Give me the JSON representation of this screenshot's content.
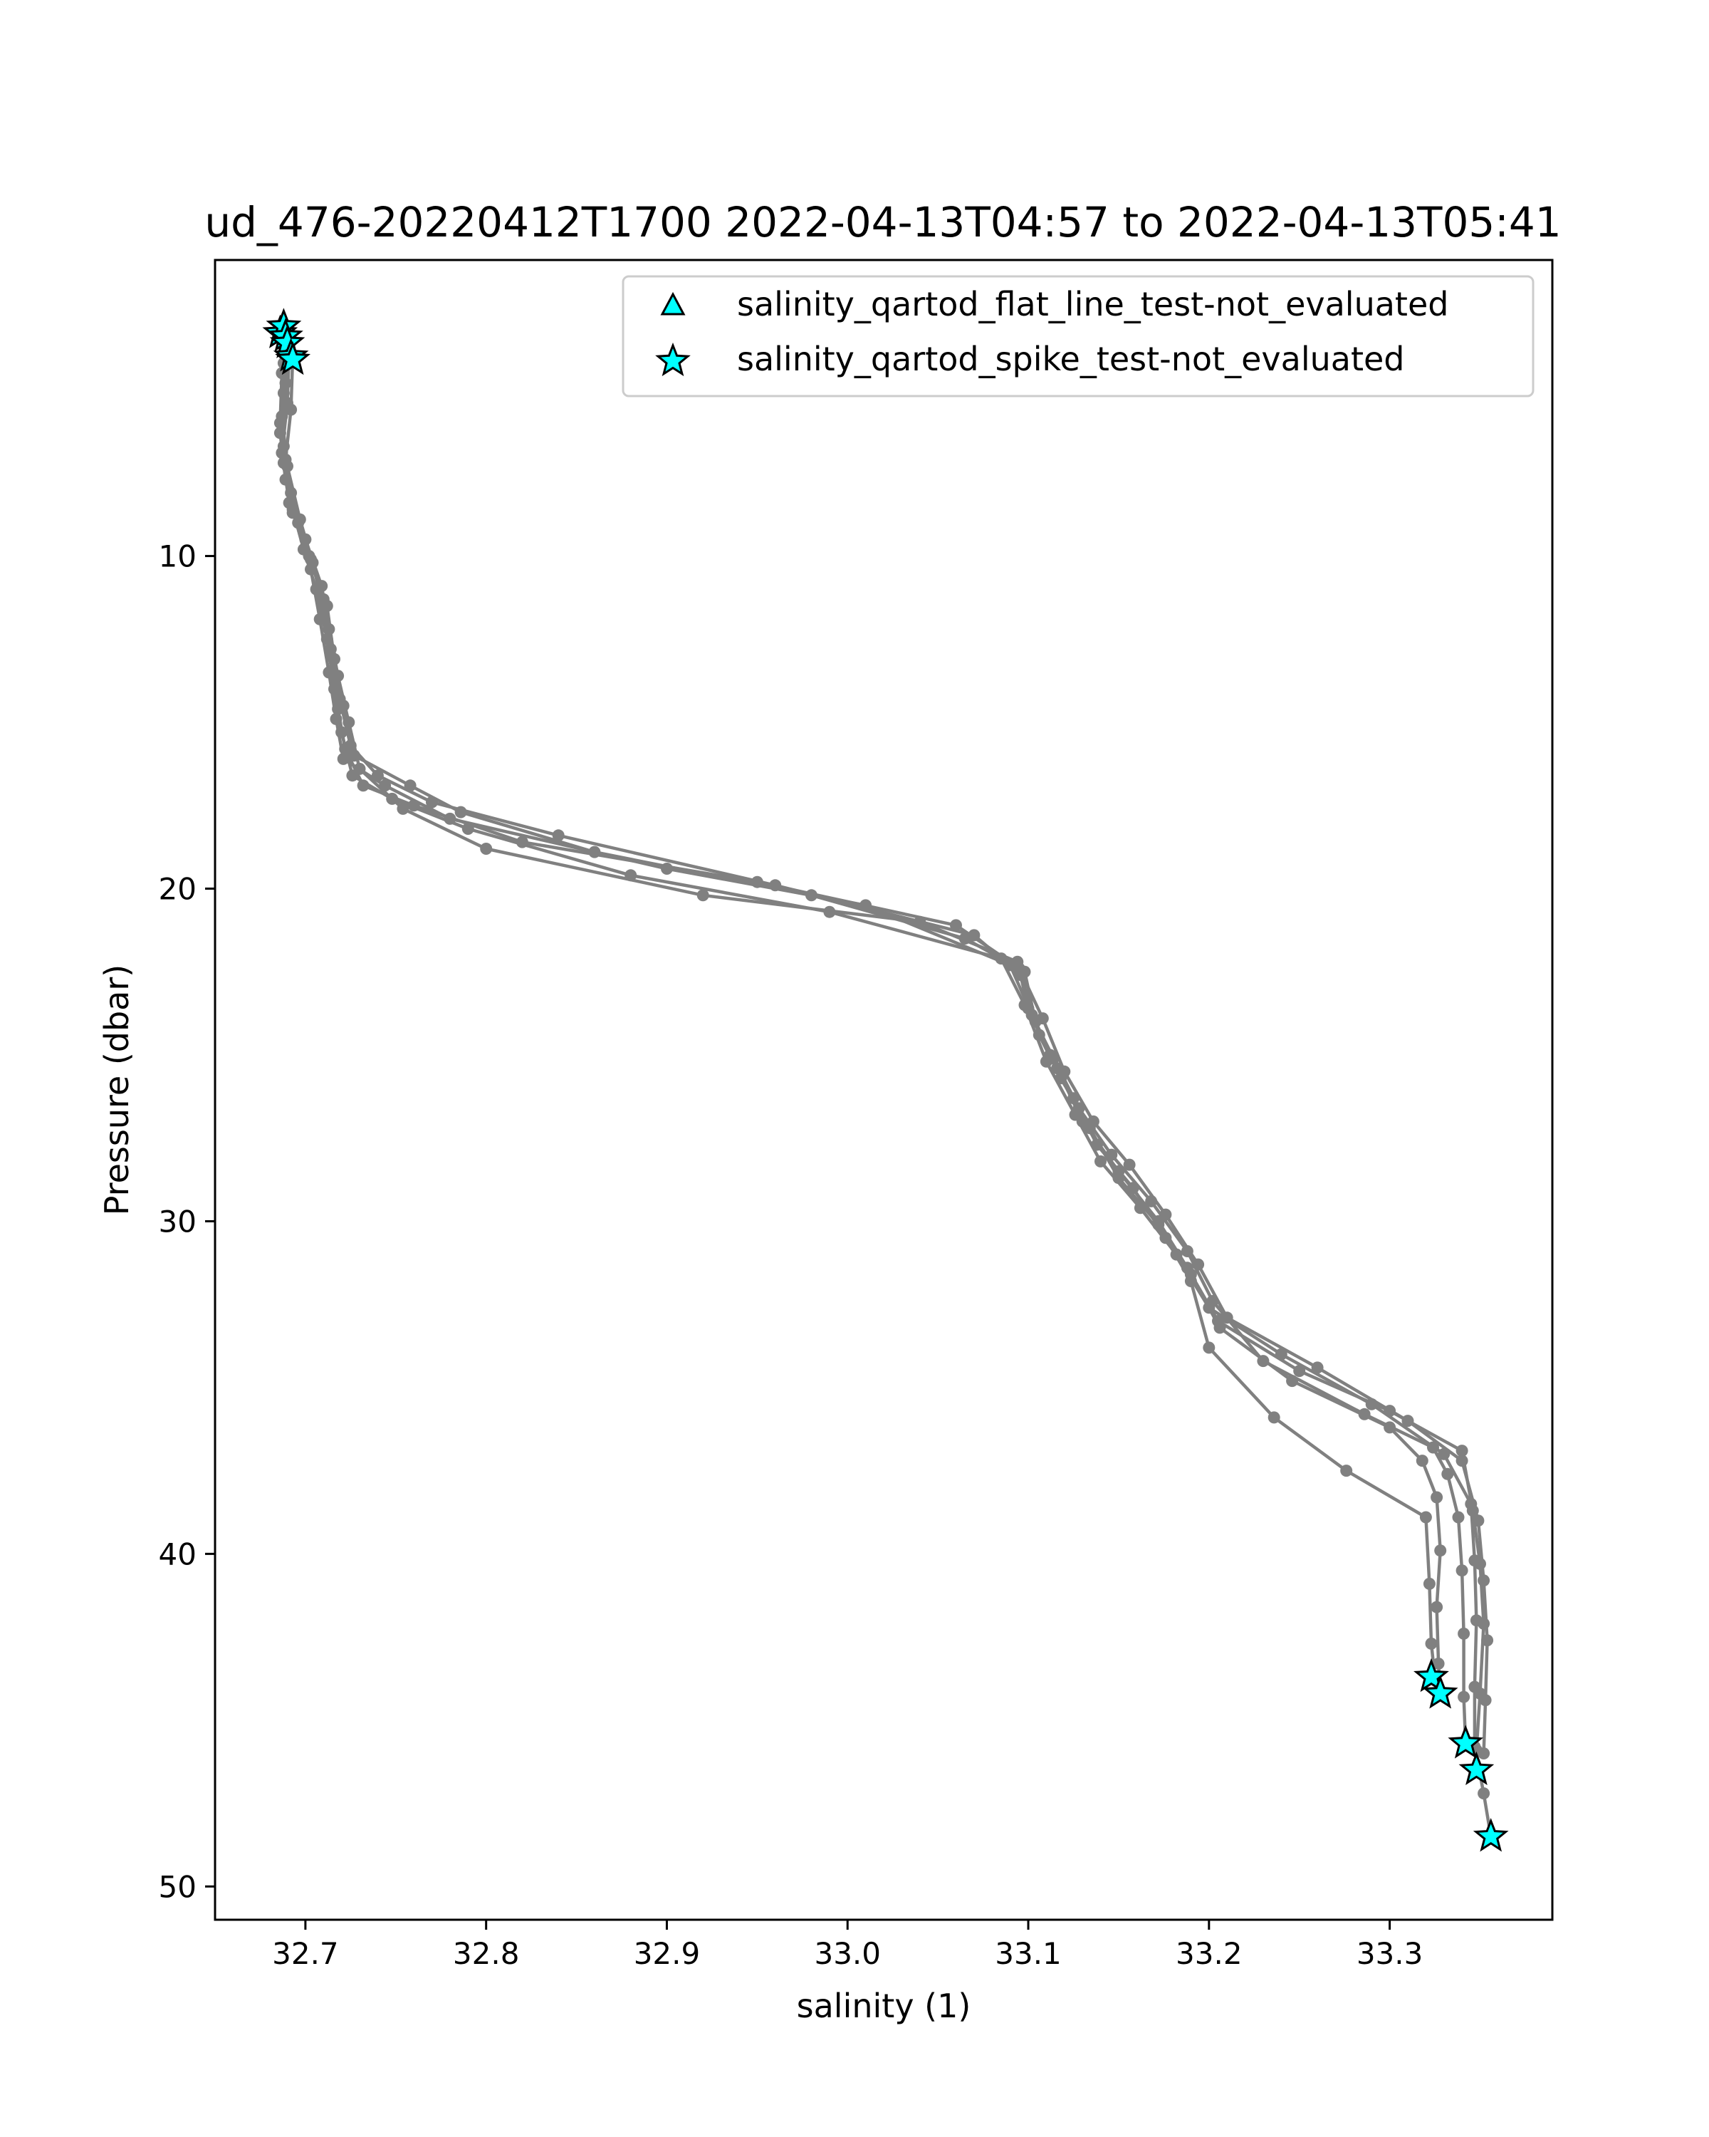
{
  "chart_data": {
    "type": "line",
    "title": "ud_476-20220412T1700 2022-04-13T04:57 to 2022-04-13T05:41",
    "xlabel": "salinity (1)",
    "ylabel": "Pressure (dbar)",
    "xlim": [
      32.65,
      33.39
    ],
    "ylim": [
      51.0,
      1.1
    ],
    "y_inverted": true,
    "grid": false,
    "xticks": [
      32.7,
      32.8,
      32.9,
      33.0,
      33.1,
      33.2,
      33.3
    ],
    "xtick_labels": [
      "32.7",
      "32.8",
      "32.9",
      "33.0",
      "33.1",
      "33.2",
      "33.3"
    ],
    "yticks": [
      10,
      20,
      30,
      40,
      50
    ],
    "ytick_labels": [
      "10",
      "20",
      "30",
      "40",
      "50"
    ],
    "line_color": "#808080",
    "marker_color": "#808080",
    "flag_color": "#00ffff",
    "flag_edge_color": "#000000",
    "legend": {
      "position": "upper right",
      "entries": [
        {
          "label": "salinity_qartod_flat_line_test-not_evaluated",
          "marker": "triangle"
        },
        {
          "label": "salinity_qartod_spike_test-not_evaluated",
          "marker": "star"
        }
      ]
    },
    "series": [
      {
        "points": [
          [
            32.686,
            3.3
          ],
          [
            32.687,
            4.5
          ],
          [
            32.686,
            6.0
          ],
          [
            32.688,
            7.2
          ],
          [
            32.693,
            8.6
          ],
          [
            32.699,
            9.8
          ],
          [
            32.706,
            11.0
          ],
          [
            32.712,
            12.5
          ],
          [
            32.716,
            14.0
          ],
          [
            32.72,
            15.3
          ],
          [
            32.726,
            16.6
          ],
          [
            32.748,
            17.3
          ],
          [
            32.79,
            18.2
          ],
          [
            32.88,
            19.6
          ],
          [
            32.99,
            20.7
          ],
          [
            33.085,
            22.1
          ],
          [
            33.098,
            23.5
          ],
          [
            33.11,
            25.2
          ],
          [
            33.126,
            26.8
          ],
          [
            33.14,
            28.2
          ],
          [
            33.162,
            29.6
          ],
          [
            33.182,
            31.0
          ],
          [
            33.2,
            32.6
          ],
          [
            33.24,
            34.0
          ],
          [
            33.29,
            35.5
          ],
          [
            33.33,
            37.0
          ],
          [
            33.345,
            38.5
          ],
          [
            33.347,
            40.2
          ],
          [
            33.348,
            42.0
          ],
          [
            33.347,
            44.0
          ],
          [
            33.347,
            45.8
          ],
          [
            33.352,
            47.2
          ],
          [
            33.356,
            48.5
          ]
        ]
      },
      {
        "points": [
          [
            32.688,
            3.1
          ],
          [
            32.688,
            4.2
          ],
          [
            32.687,
            5.8
          ],
          [
            32.69,
            7.3
          ],
          [
            32.697,
            8.9
          ],
          [
            32.704,
            10.2
          ],
          [
            32.71,
            11.6
          ],
          [
            32.714,
            13.0
          ],
          [
            32.718,
            14.6
          ],
          [
            32.722,
            15.8
          ],
          [
            32.732,
            16.9
          ],
          [
            32.76,
            17.5
          ],
          [
            32.82,
            18.6
          ],
          [
            32.95,
            19.8
          ],
          [
            33.06,
            21.1
          ],
          [
            33.098,
            22.5
          ],
          [
            33.104,
            24.0
          ],
          [
            33.116,
            25.4
          ],
          [
            33.13,
            27.0
          ],
          [
            33.15,
            28.5
          ],
          [
            33.172,
            30.0
          ],
          [
            33.188,
            31.4
          ],
          [
            33.205,
            33.0
          ],
          [
            33.25,
            34.5
          ],
          [
            33.3,
            35.7
          ],
          [
            33.34,
            36.9
          ],
          [
            33.346,
            38.7
          ],
          [
            33.35,
            40.3
          ],
          [
            33.352,
            42.1
          ],
          [
            33.35,
            44.2
          ],
          [
            33.348,
            45.9
          ],
          [
            33.349,
            46.5
          ]
        ]
      },
      {
        "points": [
          [
            32.689,
            3.4
          ],
          [
            32.689,
            4.8
          ],
          [
            32.686,
            6.3
          ],
          [
            32.689,
            7.7
          ],
          [
            32.696,
            9.0
          ],
          [
            32.703,
            10.4
          ],
          [
            32.708,
            11.9
          ],
          [
            32.713,
            13.5
          ],
          [
            32.717,
            14.9
          ],
          [
            32.721,
            16.1
          ],
          [
            32.744,
            16.9
          ],
          [
            32.78,
            17.9
          ],
          [
            32.9,
            19.4
          ],
          [
            33.01,
            20.5
          ],
          [
            33.09,
            22.3
          ],
          [
            33.102,
            23.8
          ],
          [
            33.114,
            25.1
          ],
          [
            33.128,
            26.6
          ],
          [
            33.146,
            28.0
          ],
          [
            33.168,
            29.4
          ],
          [
            33.188,
            30.9
          ],
          [
            33.202,
            32.4
          ],
          [
            33.23,
            34.2
          ],
          [
            33.286,
            35.8
          ],
          [
            33.324,
            36.8
          ],
          [
            33.332,
            37.6
          ],
          [
            33.338,
            38.9
          ],
          [
            33.34,
            40.5
          ],
          [
            33.341,
            42.4
          ],
          [
            33.341,
            44.3
          ],
          [
            33.342,
            45.7
          ]
        ]
      },
      {
        "points": [
          [
            32.69,
            3.6
          ],
          [
            32.688,
            5.1
          ],
          [
            32.688,
            6.7
          ],
          [
            32.692,
            8.1
          ],
          [
            32.7,
            9.5
          ],
          [
            32.709,
            10.9
          ],
          [
            32.713,
            12.2
          ],
          [
            32.718,
            13.6
          ],
          [
            32.724,
            15.0
          ],
          [
            32.73,
            16.4
          ],
          [
            32.754,
            17.6
          ],
          [
            32.8,
            18.8
          ],
          [
            32.92,
            20.2
          ],
          [
            33.04,
            21.0
          ],
          [
            33.094,
            22.2
          ],
          [
            33.1,
            23.6
          ],
          [
            33.112,
            25.0
          ],
          [
            33.125,
            26.3
          ],
          [
            33.138,
            27.7
          ],
          [
            33.158,
            29.0
          ],
          [
            33.176,
            30.5
          ],
          [
            33.19,
            31.8
          ],
          [
            33.2,
            33.8
          ],
          [
            33.236,
            35.9
          ],
          [
            33.276,
            37.5
          ],
          [
            33.32,
            38.9
          ],
          [
            33.322,
            40.9
          ],
          [
            33.323,
            42.7
          ],
          [
            33.325,
            43.7
          ]
        ]
      },
      {
        "points": [
          [
            32.691,
            3.8
          ],
          [
            32.69,
            5.4
          ],
          [
            32.687,
            6.9
          ],
          [
            32.691,
            8.4
          ],
          [
            32.702,
            10.0
          ],
          [
            32.71,
            11.3
          ],
          [
            32.714,
            12.8
          ],
          [
            32.719,
            14.3
          ],
          [
            32.725,
            15.7
          ],
          [
            32.74,
            16.6
          ],
          [
            32.77,
            17.4
          ],
          [
            32.84,
            18.4
          ],
          [
            32.96,
            19.9
          ],
          [
            33.07,
            21.4
          ],
          [
            33.096,
            22.6
          ],
          [
            33.106,
            24.4
          ],
          [
            33.118,
            25.7
          ],
          [
            33.134,
            27.2
          ],
          [
            33.15,
            28.7
          ],
          [
            33.172,
            30.1
          ],
          [
            33.19,
            31.6
          ],
          [
            33.206,
            33.2
          ],
          [
            33.246,
            34.8
          ],
          [
            33.3,
            36.2
          ],
          [
            33.318,
            37.2
          ],
          [
            33.326,
            38.3
          ],
          [
            33.328,
            39.9
          ],
          [
            33.326,
            41.6
          ],
          [
            33.327,
            43.3
          ],
          [
            33.328,
            44.2
          ]
        ]
      },
      {
        "points": [
          [
            32.693,
            4.0
          ],
          [
            32.692,
            5.6
          ],
          [
            32.689,
            7.1
          ],
          [
            32.693,
            8.7
          ],
          [
            32.703,
            10.1
          ],
          [
            32.712,
            11.5
          ],
          [
            32.716,
            13.1
          ],
          [
            32.721,
            14.5
          ],
          [
            32.727,
            16.0
          ],
          [
            32.758,
            16.9
          ],
          [
            32.786,
            17.7
          ],
          [
            32.86,
            18.9
          ],
          [
            32.98,
            20.2
          ],
          [
            33.065,
            21.5
          ],
          [
            33.095,
            22.4
          ],
          [
            33.108,
            23.9
          ],
          [
            33.12,
            25.5
          ],
          [
            33.136,
            27.0
          ],
          [
            33.156,
            28.3
          ],
          [
            33.176,
            29.8
          ],
          [
            33.194,
            31.3
          ],
          [
            33.21,
            32.9
          ],
          [
            33.26,
            34.4
          ],
          [
            33.31,
            36.0
          ],
          [
            33.34,
            37.2
          ],
          [
            33.349,
            39.0
          ],
          [
            33.352,
            40.8
          ],
          [
            33.354,
            42.6
          ],
          [
            33.353,
            44.4
          ],
          [
            33.352,
            46.0
          ]
        ]
      }
    ],
    "flagged_points": [
      {
        "x": 32.686,
        "y": 3.3
      },
      {
        "x": 32.688,
        "y": 3.1
      },
      {
        "x": 32.689,
        "y": 3.4
      },
      {
        "x": 32.69,
        "y": 3.6
      },
      {
        "x": 32.692,
        "y": 4.0
      },
      {
        "x": 32.693,
        "y": 4.1
      },
      {
        "x": 33.323,
        "y": 43.7
      },
      {
        "x": 33.328,
        "y": 44.2
      },
      {
        "x": 33.342,
        "y": 45.7
      },
      {
        "x": 33.348,
        "y": 46.5
      },
      {
        "x": 33.356,
        "y": 48.5
      }
    ]
  }
}
